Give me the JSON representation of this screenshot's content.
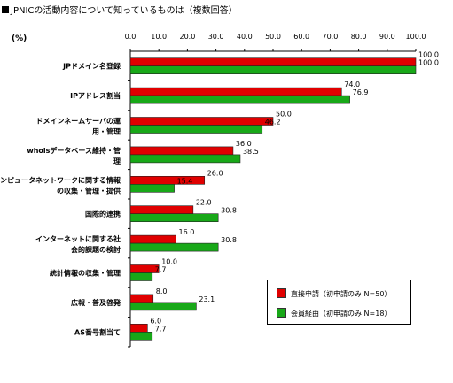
{
  "title_text": "JPNICの活動内容について知っているものは（複数回答）",
  "unit_label": "(%)",
  "legend": {
    "items": [
      {
        "label": "直接申請（初申請のみ N=50）",
        "color": "#e00000"
      },
      {
        "label": "会員経由（初申請のみ N=18）",
        "color": "#18a818"
      }
    ]
  },
  "chart_data": {
    "type": "bar",
    "orientation": "horizontal",
    "title": "JPNICの活動内容について知っているものは（複数回答）",
    "xlabel": "(%)",
    "ylabel": "",
    "xlim": [
      0,
      100
    ],
    "ticks": [
      "0.0",
      "10.0",
      "20.0",
      "30.0",
      "40.0",
      "50.0",
      "60.0",
      "70.0",
      "80.0",
      "90.0",
      "100.0"
    ],
    "categories": [
      [
        "JPドメイン名登録"
      ],
      [
        "IPアドレス割当"
      ],
      [
        "ドメインネームサーバの運",
        "用・管理"
      ],
      [
        "whoisデータベース維持・管",
        "理"
      ],
      [
        "コンピュータネットワークに関する情報",
        "の収集・管理・提供"
      ],
      [
        "国際的連携"
      ],
      [
        "インターネットに関する社",
        "会的課題の検討"
      ],
      [
        "統計情報の収集・管理"
      ],
      [
        "広報・普及啓発"
      ],
      [
        "AS番号割当て"
      ]
    ],
    "series": [
      {
        "name": "直接申請（初申請のみ N=50）",
        "color": "#e00000",
        "values": [
          100.0,
          74.0,
          50.0,
          36.0,
          26.0,
          22.0,
          16.0,
          10.0,
          8.0,
          6.0
        ],
        "labels": [
          "100.0",
          "74.0",
          "50.0",
          "36.0",
          "26.0",
          "22.0",
          "16.0",
          "10.0",
          "8.0",
          "6.0"
        ]
      },
      {
        "name": "会員経由（初申請のみ N=18）",
        "color": "#18a818",
        "values": [
          100.0,
          76.9,
          46.2,
          38.5,
          15.4,
          30.8,
          30.8,
          7.7,
          23.1,
          7.7
        ],
        "labels": [
          "100.0",
          "76.9",
          "46.2",
          "38.5",
          "15.4",
          "30.8",
          "30.8",
          "7.7",
          "23.1",
          "7.7"
        ]
      }
    ],
    "grid": false,
    "legend_position": "bottom-right"
  }
}
